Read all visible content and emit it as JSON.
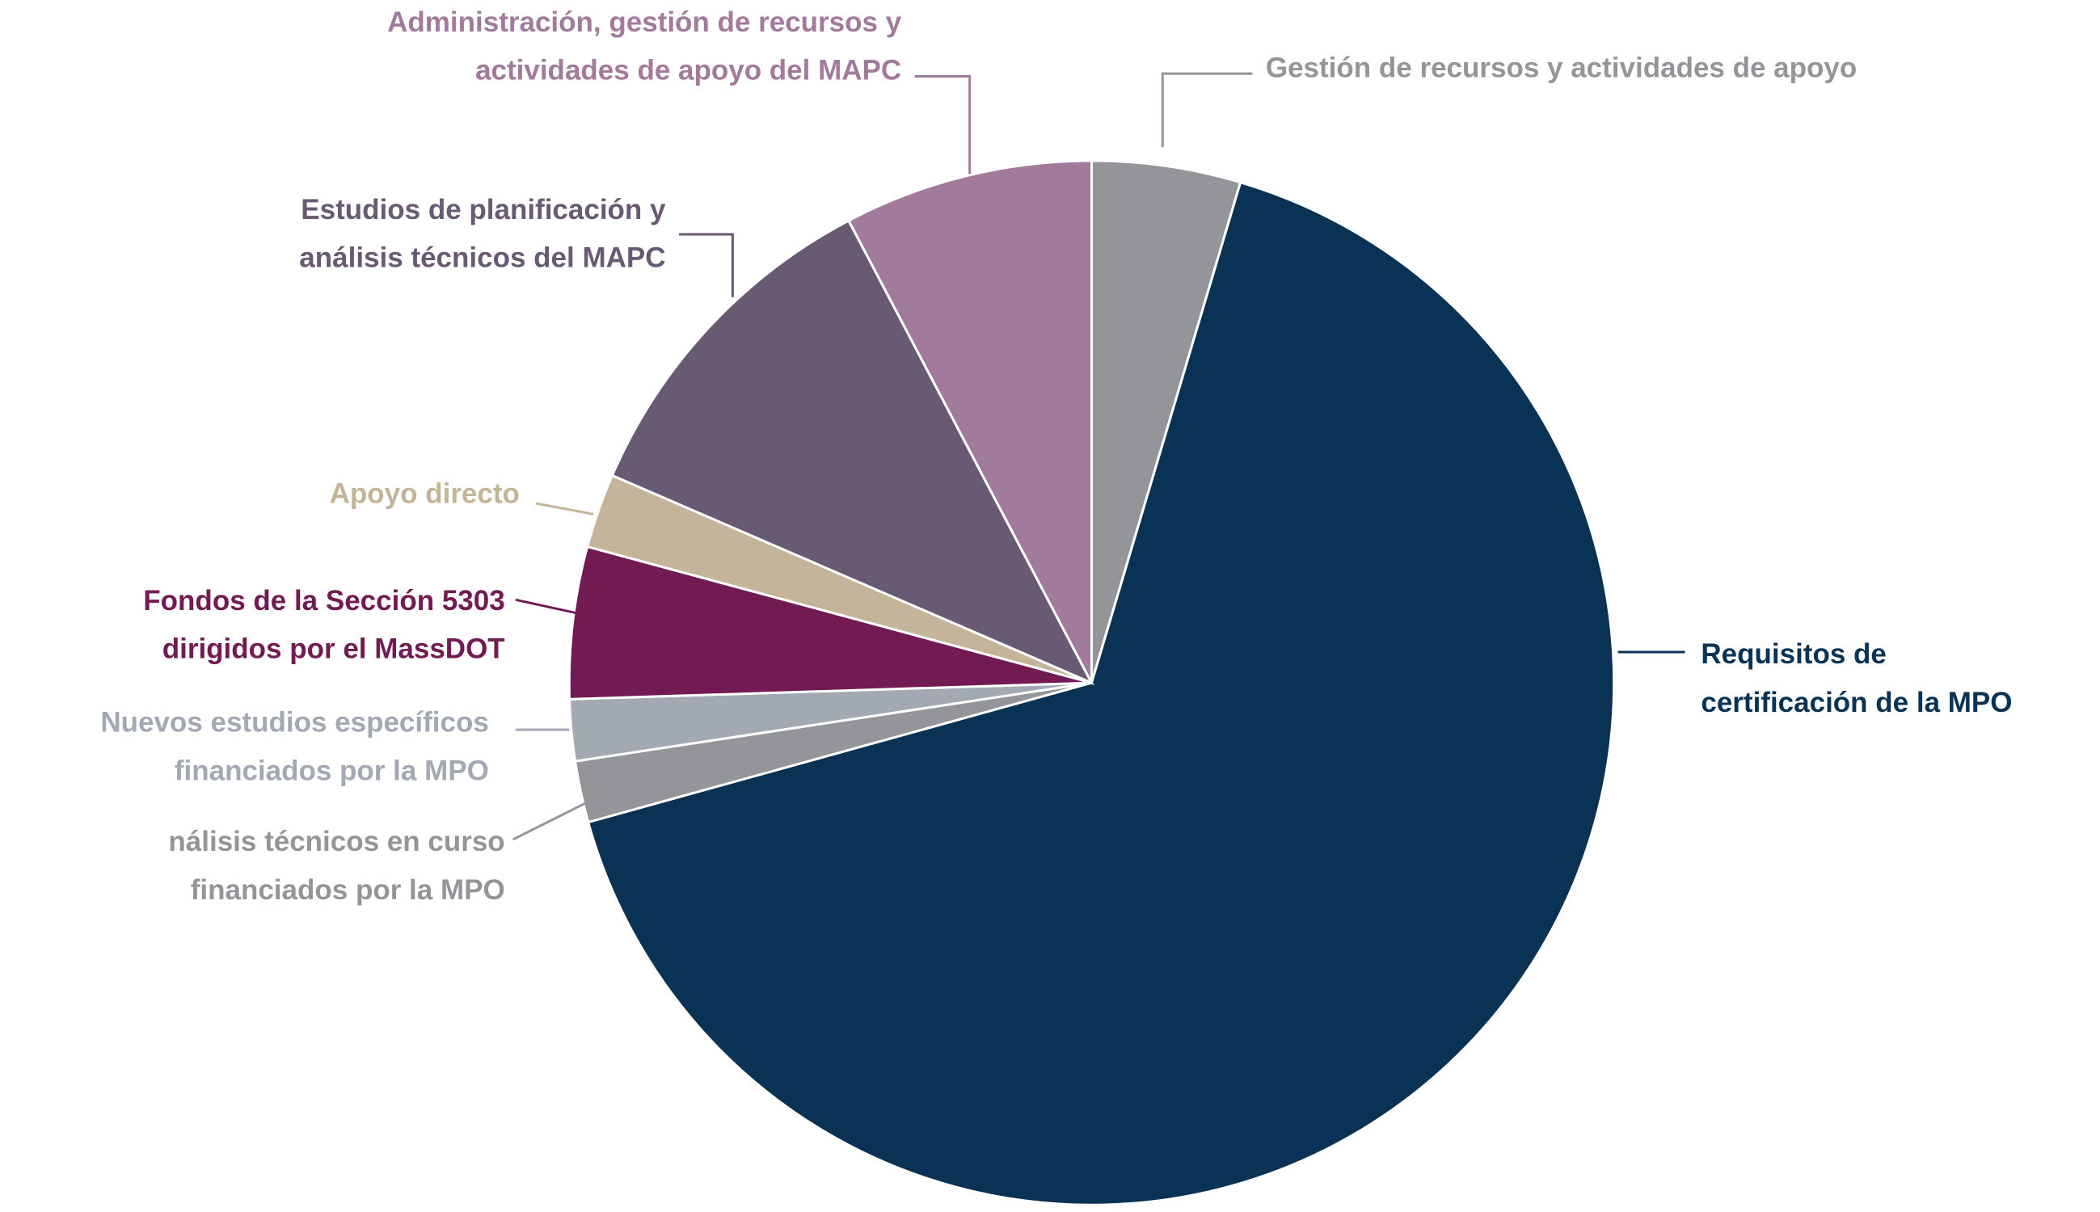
{
  "chart_data": {
    "type": "pie",
    "categories": [
      [
        "Gestión de recursos y actividades de apoyo"
      ],
      [
        "Requisitos de",
        "certificación de la MPO"
      ],
      [
        "nálisis técnicos en curso",
        "financiados por la MPO"
      ],
      [
        "Nuevos estudios específicos",
        "financiados por la MPO"
      ],
      [
        "Fondos de la Sección 5303",
        "dirigidos por el MassDOT"
      ],
      [
        "Apoyo directo"
      ],
      [
        "Estudios de planificación y",
        "análisis técnicos del MAPC"
      ],
      [
        "Administración, gestión de recursos y",
        "actividades de apoyo del MAPC"
      ]
    ],
    "values": [
      4.6,
      66.1,
      1.9,
      1.9,
      4.7,
      2.3,
      10.8,
      7.7
    ],
    "colors": [
      "#939598",
      "#0a3254",
      "#939598",
      "#a3a9b3",
      "#721b52",
      "#c4b49a",
      "#685a72",
      "#a27a9b"
    ]
  }
}
